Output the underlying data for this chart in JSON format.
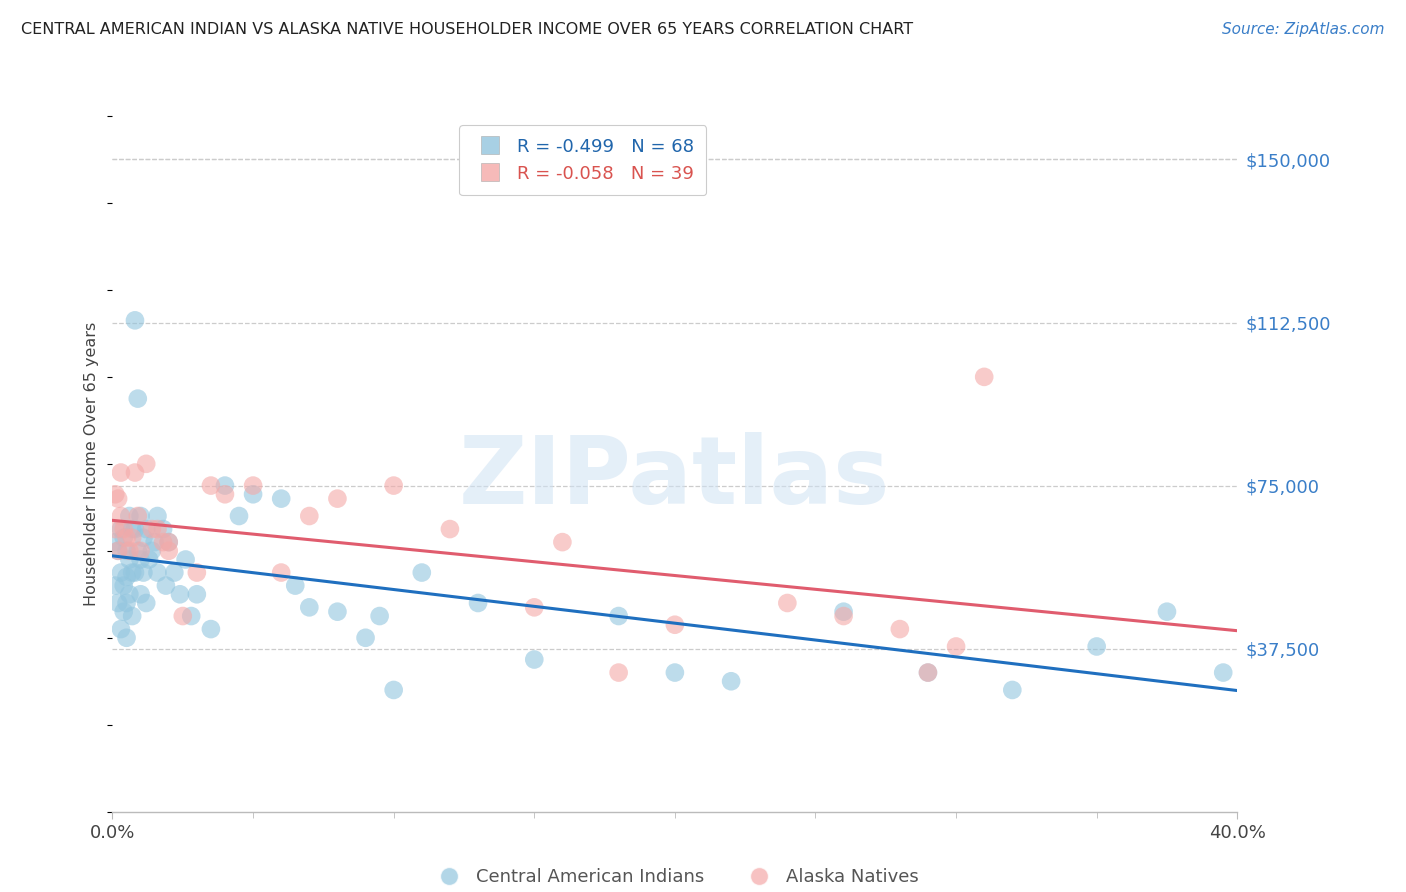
{
  "title": "CENTRAL AMERICAN INDIAN VS ALASKA NATIVE HOUSEHOLDER INCOME OVER 65 YEARS CORRELATION CHART",
  "source": "Source: ZipAtlas.com",
  "ylabel": "Householder Income Over 65 years",
  "xmin": 0.0,
  "xmax": 0.4,
  "ymin": 0,
  "ymax": 160000,
  "yticks": [
    0,
    37500,
    75000,
    112500,
    150000
  ],
  "ytick_labels": [
    "",
    "$37,500",
    "$75,000",
    "$112,500",
    "$150,000"
  ],
  "blue_color": "#92c5de",
  "pink_color": "#f4a9a8",
  "blue_line_color": "#1f6fbf",
  "pink_line_color": "#e05c6e",
  "watermark_text": "ZIPatlas",
  "legend_labels_top": [
    "R = -0.499   N = 68",
    "R = -0.058   N = 39"
  ],
  "legend_labels_bottom": [
    "Central American Indians",
    "Alaska Natives"
  ],
  "blue_r": -0.499,
  "pink_r": -0.058,
  "blue_scatter_x": [
    0.001,
    0.001,
    0.002,
    0.002,
    0.003,
    0.003,
    0.003,
    0.004,
    0.004,
    0.004,
    0.005,
    0.005,
    0.005,
    0.005,
    0.006,
    0.006,
    0.006,
    0.007,
    0.007,
    0.007,
    0.008,
    0.008,
    0.008,
    0.009,
    0.009,
    0.01,
    0.01,
    0.01,
    0.011,
    0.011,
    0.012,
    0.012,
    0.013,
    0.014,
    0.015,
    0.016,
    0.016,
    0.018,
    0.019,
    0.02,
    0.022,
    0.024,
    0.026,
    0.028,
    0.03,
    0.035,
    0.04,
    0.045,
    0.05,
    0.06,
    0.065,
    0.07,
    0.08,
    0.09,
    0.095,
    0.1,
    0.11,
    0.13,
    0.15,
    0.18,
    0.2,
    0.22,
    0.26,
    0.29,
    0.32,
    0.35,
    0.375,
    0.395
  ],
  "blue_scatter_y": [
    62000,
    52000,
    60000,
    48000,
    65000,
    55000,
    42000,
    63000,
    52000,
    46000,
    60000,
    54000,
    48000,
    40000,
    68000,
    58000,
    50000,
    65000,
    55000,
    45000,
    113000,
    65000,
    55000,
    95000,
    60000,
    68000,
    58000,
    50000,
    63000,
    55000,
    65000,
    48000,
    58000,
    60000,
    62000,
    68000,
    55000,
    65000,
    52000,
    62000,
    55000,
    50000,
    58000,
    45000,
    50000,
    42000,
    75000,
    68000,
    73000,
    72000,
    52000,
    47000,
    46000,
    40000,
    45000,
    28000,
    55000,
    48000,
    35000,
    45000,
    32000,
    30000,
    46000,
    32000,
    28000,
    38000,
    46000,
    32000
  ],
  "pink_scatter_x": [
    0.001,
    0.001,
    0.002,
    0.002,
    0.003,
    0.003,
    0.004,
    0.005,
    0.006,
    0.007,
    0.008,
    0.009,
    0.01,
    0.012,
    0.014,
    0.016,
    0.018,
    0.02,
    0.025,
    0.03,
    0.035,
    0.04,
    0.06,
    0.07,
    0.08,
    0.1,
    0.12,
    0.15,
    0.16,
    0.18,
    0.2,
    0.24,
    0.26,
    0.28,
    0.3,
    0.02,
    0.05,
    0.29,
    0.31
  ],
  "pink_scatter_y": [
    73000,
    65000,
    72000,
    60000,
    78000,
    68000,
    65000,
    63000,
    60000,
    63000,
    78000,
    68000,
    60000,
    80000,
    65000,
    65000,
    62000,
    60000,
    45000,
    55000,
    75000,
    73000,
    55000,
    68000,
    72000,
    75000,
    65000,
    47000,
    62000,
    32000,
    43000,
    48000,
    45000,
    42000,
    38000,
    62000,
    75000,
    32000,
    100000
  ]
}
